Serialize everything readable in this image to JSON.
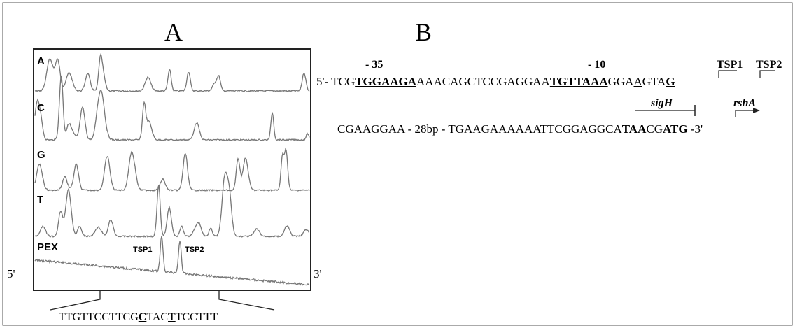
{
  "panel_a": {
    "label": "A",
    "lanes": [
      "A",
      "C",
      "G",
      "T",
      "PEX"
    ],
    "peaks": [
      "TSP1",
      "TSP2"
    ],
    "end_5": "5'",
    "end_3": "3'",
    "sequence": [
      "TTGTTCCTTCG",
      "C",
      "TAC",
      "T",
      "TCCTTT"
    ]
  },
  "panel_b": {
    "label": "B",
    "minus_35": "- 35",
    "minus_10": "- 10",
    "tsp1": "TSP1",
    "tsp2": "TSP2",
    "line1": [
      "5'- TCG",
      "TGGAAGA",
      "AAACAGCTCCGAGGAA",
      "TGTTAAA",
      "GGA",
      "A",
      "GTA",
      "G"
    ],
    "sigh": "sigH",
    "rsha": "rshA",
    "line2": [
      "CGAAGGAA - 28bp - TGAAGAAAAAATTCGGAGGCA",
      "TAA",
      "CG",
      "ATG",
      " -3'"
    ]
  }
}
